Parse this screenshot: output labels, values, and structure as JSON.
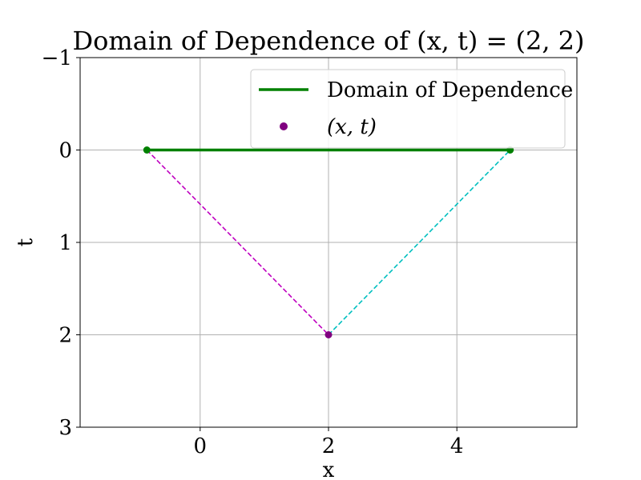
{
  "chart_data": {
    "type": "line",
    "title": "Domain of Dependence of (x, t) = (2, 2)",
    "xlabel": "x",
    "ylabel": "t",
    "xlim": [
      -1.87,
      5.87
    ],
    "ylim": [
      3,
      -1
    ],
    "y_inverted": true,
    "grid": true,
    "xticks": [
      0,
      2,
      4
    ],
    "xtick_labels": [
      "0",
      "2",
      "4"
    ],
    "yticks": [
      -1,
      0,
      1,
      2,
      3
    ],
    "ytick_labels": [
      "−1",
      "0",
      "1",
      "2",
      "3"
    ],
    "legend_position": "top-right",
    "series": [
      {
        "name": "Domain of Dependence",
        "style": "solid",
        "color": "#008000",
        "x": [
          -0.83,
          4.83
        ],
        "y": [
          0,
          0
        ]
      },
      {
        "style": "dashed",
        "color": "#bf00bf",
        "x": [
          -0.83,
          2
        ],
        "y": [
          0,
          2
        ]
      },
      {
        "style": "dashed",
        "color": "#00bfbf",
        "x": [
          2,
          4.83
        ],
        "y": [
          2,
          0
        ]
      }
    ],
    "points": [
      {
        "name": "(x, t)",
        "x": 2,
        "y": 2,
        "color": "#800080"
      },
      {
        "x": -0.83,
        "y": 0,
        "color": "#008000"
      },
      {
        "x": 4.83,
        "y": 0,
        "color": "#008000"
      }
    ],
    "legend": [
      {
        "label": "Domain of Dependence",
        "marker": "line",
        "color": "#008000"
      },
      {
        "label": "(x, t)",
        "marker": "dot",
        "color": "#800080"
      }
    ],
    "colors": {
      "grid": "#b0b0b0",
      "axes": "#000000",
      "legend_border": "#cccccc"
    }
  }
}
